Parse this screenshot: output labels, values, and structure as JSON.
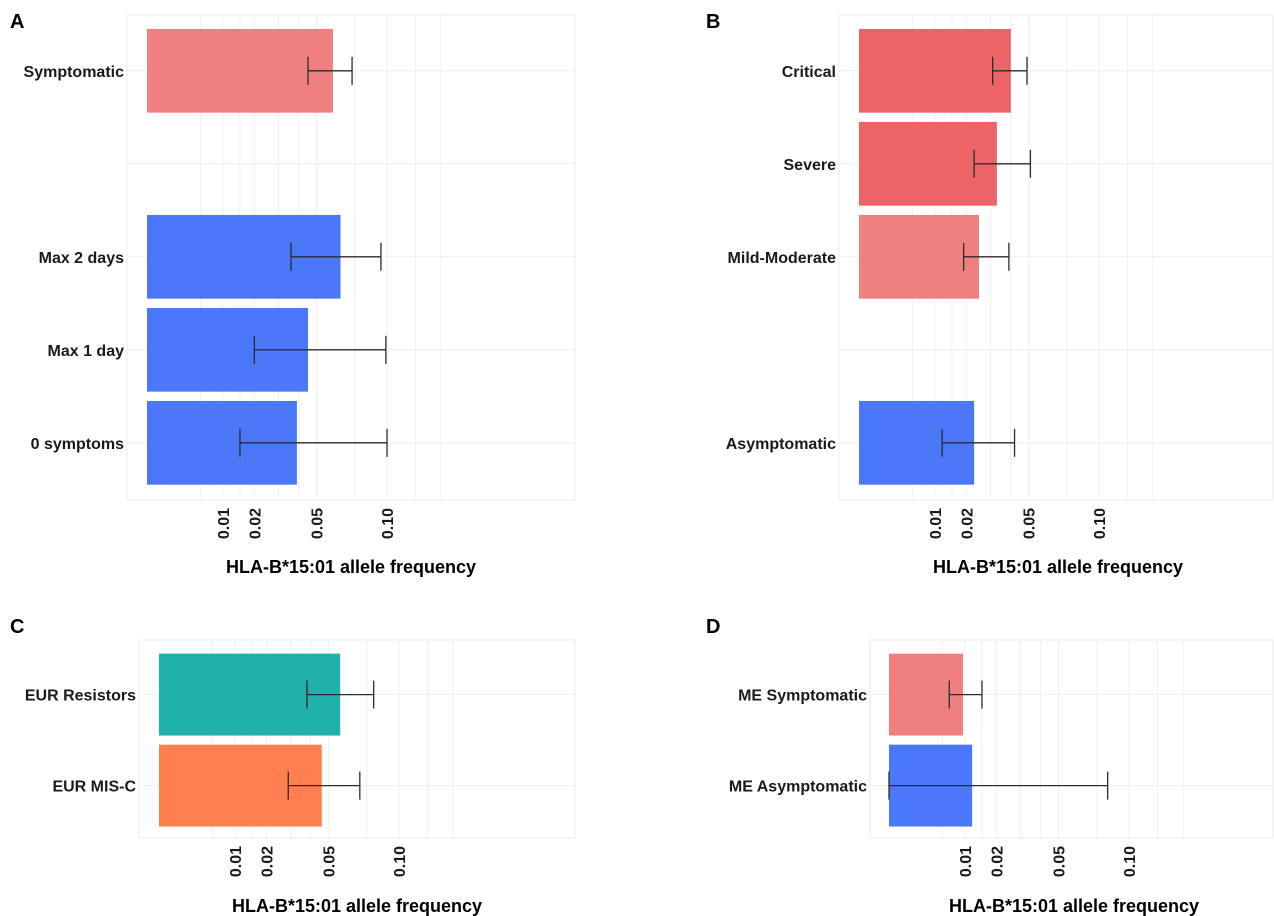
{
  "colors": {
    "critical": "#ec6466",
    "severe": "#ec6466",
    "symptomatic": "#f08080",
    "asymptomatic": "#4a78f8",
    "resistors": "#20b2aa",
    "misc": "#ff7f50",
    "grid": "#ebebeb",
    "error_bar": "#2b2b2b"
  },
  "chart_data": [
    {
      "panel": "A",
      "type": "bar",
      "orientation": "horizontal",
      "xlabel": "HLA-B*15:01 allele frequency",
      "x_ticks": [
        "0.01",
        "0.02",
        "0.05",
        "0.10"
      ],
      "x_scale": "sqrt",
      "xlim": [
        0,
        0.19
      ],
      "grid": true,
      "categories": [
        "Symptomatic",
        "",
        "Max 2 days",
        "Max 1 day",
        "0 symptoms"
      ],
      "values": [
        0.06,
        null,
        0.065,
        0.045,
        0.039
      ],
      "err_low": [
        0.045,
        null,
        0.036,
        0.02,
        0.015
      ],
      "err_high": [
        0.073,
        null,
        0.095,
        0.099,
        0.1
      ],
      "bar_colors": [
        "symptomatic",
        null,
        "asymptomatic",
        "asymptomatic",
        "asymptomatic"
      ]
    },
    {
      "panel": "B",
      "type": "bar",
      "orientation": "horizontal",
      "xlabel": "HLA-B*15:01 allele frequency",
      "x_ticks": [
        "0.01",
        "0.02",
        "0.05",
        "0.10"
      ],
      "x_scale": "sqrt",
      "xlim": [
        0,
        0.19
      ],
      "grid": true,
      "categories": [
        "Critical",
        "Severe",
        "Mild-Moderate",
        "",
        "Asymptomatic"
      ],
      "values": [
        0.04,
        0.033,
        0.025,
        null,
        0.023
      ],
      "err_low": [
        0.031,
        0.023,
        0.019,
        null,
        0.012
      ],
      "err_high": [
        0.049,
        0.051,
        0.039,
        null,
        0.042
      ],
      "bar_colors": [
        "critical",
        "severe",
        "symptomatic",
        null,
        "asymptomatic"
      ]
    },
    {
      "panel": "C",
      "type": "bar",
      "orientation": "horizontal",
      "xlabel": "HLA-B*15:01 allele frequency",
      "x_ticks": [
        "0.01",
        "0.02",
        "0.05",
        "0.10"
      ],
      "x_scale": "sqrt",
      "xlim": [
        0,
        0.19
      ],
      "grid": true,
      "categories": [
        "EUR Resistors",
        "EUR MIS-C"
      ],
      "values": [
        0.057,
        0.046
      ],
      "err_low": [
        0.038,
        0.029
      ],
      "err_high": [
        0.08,
        0.07
      ],
      "bar_colors": [
        "resistors",
        "misc"
      ]
    },
    {
      "panel": "D",
      "type": "bar",
      "orientation": "horizontal",
      "xlabel": "HLA-B*15:01 allele frequency",
      "x_ticks": [
        "0.01",
        "0.02",
        "0.05",
        "0.10"
      ],
      "x_scale": "sqrt",
      "xlim": [
        0,
        0.19
      ],
      "grid": true,
      "categories": [
        "ME Symptomatic",
        "ME Asymptomatic"
      ],
      "values": [
        0.0095,
        0.012
      ],
      "err_low": [
        0.0063,
        0.0
      ],
      "err_high": [
        0.015,
        0.083
      ],
      "bar_colors": [
        "symptomatic",
        "asymptomatic"
      ]
    }
  ]
}
